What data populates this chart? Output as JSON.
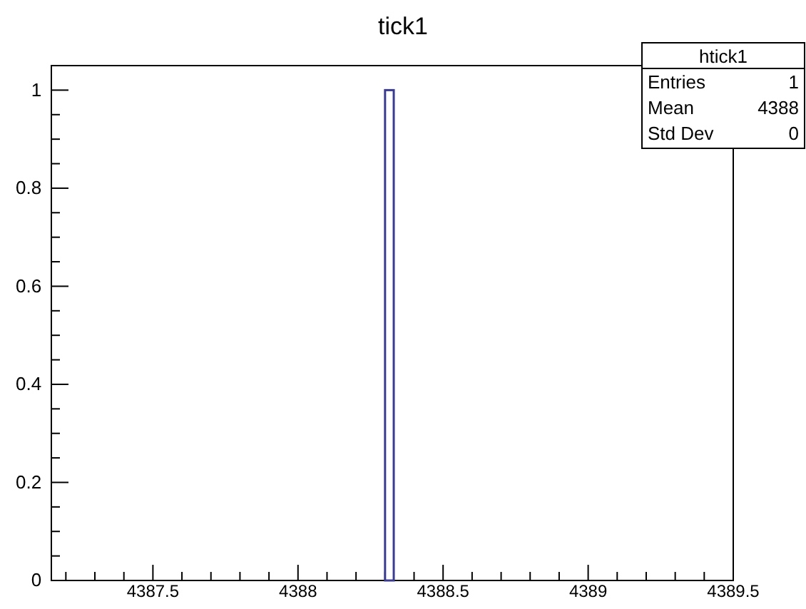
{
  "chart_data": {
    "type": "histogram",
    "title": "tick1",
    "bins": [
      4388.3,
      4388.33
    ],
    "values": [
      1
    ],
    "color": "#3b3b8f",
    "xlim": [
      4387.15,
      4389.5
    ],
    "xticks": [
      {
        "value": 4387.2,
        "label": null
      },
      {
        "value": 4387.3,
        "label": null
      },
      {
        "value": 4387.4,
        "label": null
      },
      4387.5,
      {
        "value": 4387.6,
        "label": null
      },
      {
        "value": 4387.7,
        "label": null
      },
      {
        "value": 4387.8,
        "label": null
      },
      {
        "value": 4387.9,
        "label": null
      },
      4388,
      {
        "value": 4388.1,
        "label": null
      },
      {
        "value": 4388.2,
        "label": null
      },
      {
        "value": 4388.3,
        "label": null
      },
      {
        "value": 4388.4,
        "label": null
      },
      4388.5,
      {
        "value": 4388.6,
        "label": null
      },
      {
        "value": 4388.7,
        "label": null
      },
      {
        "value": 4388.8,
        "label": null
      },
      {
        "value": 4388.9,
        "label": null
      },
      4389,
      {
        "value": 4389.1,
        "label": null
      },
      {
        "value": 4389.2,
        "label": null
      },
      {
        "value": 4389.3,
        "label": null
      },
      {
        "value": 4389.4,
        "label": null
      },
      4389.5
    ],
    "ylim": [
      0,
      1.05
    ],
    "yticks": [
      0,
      {
        "value": 0.05,
        "label": null
      },
      {
        "value": 0.1,
        "label": null
      },
      {
        "value": 0.15,
        "label": null
      },
      0.2,
      {
        "value": 0.25,
        "label": null
      },
      {
        "value": 0.3,
        "label": null
      },
      {
        "value": 0.35,
        "label": null
      },
      0.4,
      {
        "value": 0.45,
        "label": null
      },
      {
        "value": 0.5,
        "label": null
      },
      {
        "value": 0.55,
        "label": null
      },
      0.6,
      {
        "value": 0.65,
        "label": null
      },
      {
        "value": 0.7,
        "label": null
      },
      {
        "value": 0.75,
        "label": null
      },
      0.8,
      {
        "value": 0.85,
        "label": null
      },
      {
        "value": 0.9,
        "label": null
      },
      {
        "value": 0.95,
        "label": null
      },
      1,
      {
        "value": 1.05,
        "label": null
      }
    ],
    "grid": false,
    "annotations": [
      "htick1",
      "Entries",
      "1",
      "Mean",
      "4388",
      "Std Dev",
      "0"
    ]
  }
}
